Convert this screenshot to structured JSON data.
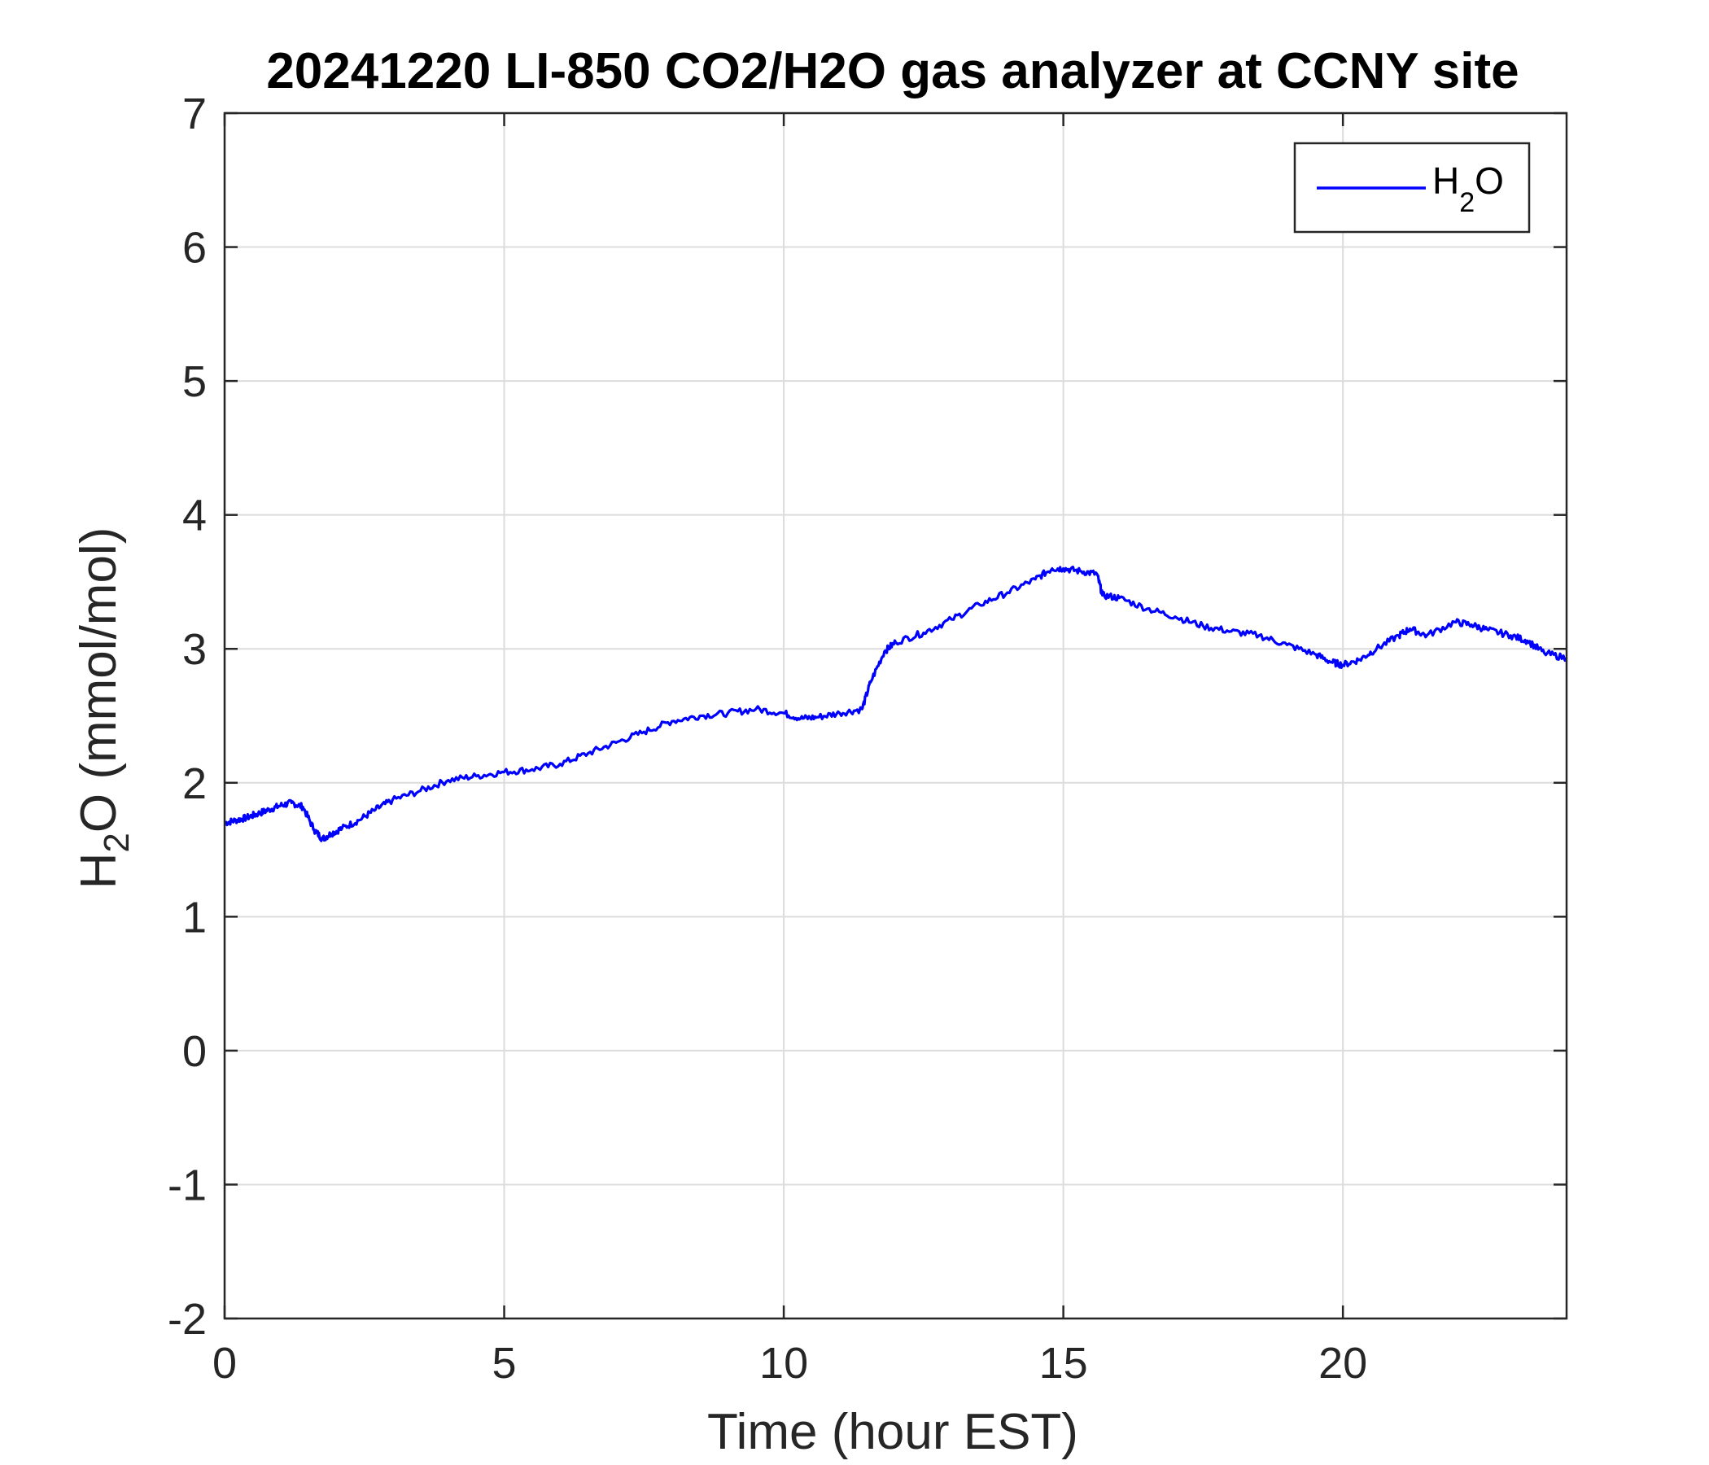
{
  "chart_data": {
    "type": "line",
    "title": "20241220 LI-850 CO2/H2O gas analyzer at CCNY site",
    "xlabel": "Time (hour EST)",
    "ylabel": {
      "main": "H",
      "sub": "2",
      "rest": "O (mmol/mol)"
    },
    "xlim": [
      0,
      24
    ],
    "ylim": [
      -2,
      7
    ],
    "xticks": [
      0,
      5,
      10,
      15,
      20
    ],
    "xtick_labels": [
      "0",
      "5",
      "10",
      "15",
      "20"
    ],
    "yticks": [
      -2,
      -1,
      0,
      1,
      2,
      3,
      4,
      5,
      6,
      7
    ],
    "ytick_labels": [
      "-2",
      "-1",
      "0",
      "1",
      "2",
      "3",
      "4",
      "5",
      "6",
      "7"
    ],
    "grid": true,
    "legend": {
      "placement": "top-right",
      "entries": [
        {
          "main": "H",
          "sub": "2",
          "rest": "O"
        }
      ]
    },
    "series": [
      {
        "name": "H2O",
        "color": "#0000ff",
        "x": [
          0,
          0.2,
          0.4,
          0.6,
          0.8,
          1.0,
          1.2,
          1.4,
          1.6,
          1.75,
          1.9,
          2.1,
          2.4,
          2.7,
          3.0,
          3.5,
          4.0,
          4.5,
          5.0,
          5.5,
          6.0,
          6.5,
          7.0,
          7.5,
          8.0,
          8.5,
          9.0,
          9.5,
          10.0,
          10.3,
          10.6,
          11.0,
          11.4,
          11.55,
          11.8,
          12.0,
          12.5,
          13.0,
          13.5,
          14.0,
          14.5,
          14.8,
          15.0,
          15.3,
          15.6,
          15.7,
          16.0,
          16.5,
          17.0,
          17.5,
          18.0,
          18.5,
          19.0,
          19.5,
          19.8,
          20.0,
          20.3,
          20.6,
          21.0,
          21.2,
          21.5,
          22.0,
          22.3,
          22.6,
          23.0,
          23.3,
          23.6,
          24.0
        ],
        "y": [
          1.7,
          1.72,
          1.74,
          1.77,
          1.8,
          1.83,
          1.85,
          1.82,
          1.65,
          1.58,
          1.62,
          1.66,
          1.72,
          1.8,
          1.87,
          1.94,
          2.02,
          2.05,
          2.08,
          2.1,
          2.14,
          2.22,
          2.3,
          2.38,
          2.46,
          2.5,
          2.52,
          2.55,
          2.52,
          2.48,
          2.49,
          2.52,
          2.55,
          2.75,
          2.98,
          3.05,
          3.12,
          3.22,
          3.33,
          3.42,
          3.52,
          3.6,
          3.6,
          3.58,
          3.56,
          3.4,
          3.38,
          3.3,
          3.24,
          3.17,
          3.13,
          3.1,
          3.03,
          2.96,
          2.9,
          2.88,
          2.92,
          3.0,
          3.1,
          3.15,
          3.1,
          3.2,
          3.18,
          3.14,
          3.1,
          3.06,
          2.97,
          2.93
        ]
      }
    ]
  }
}
